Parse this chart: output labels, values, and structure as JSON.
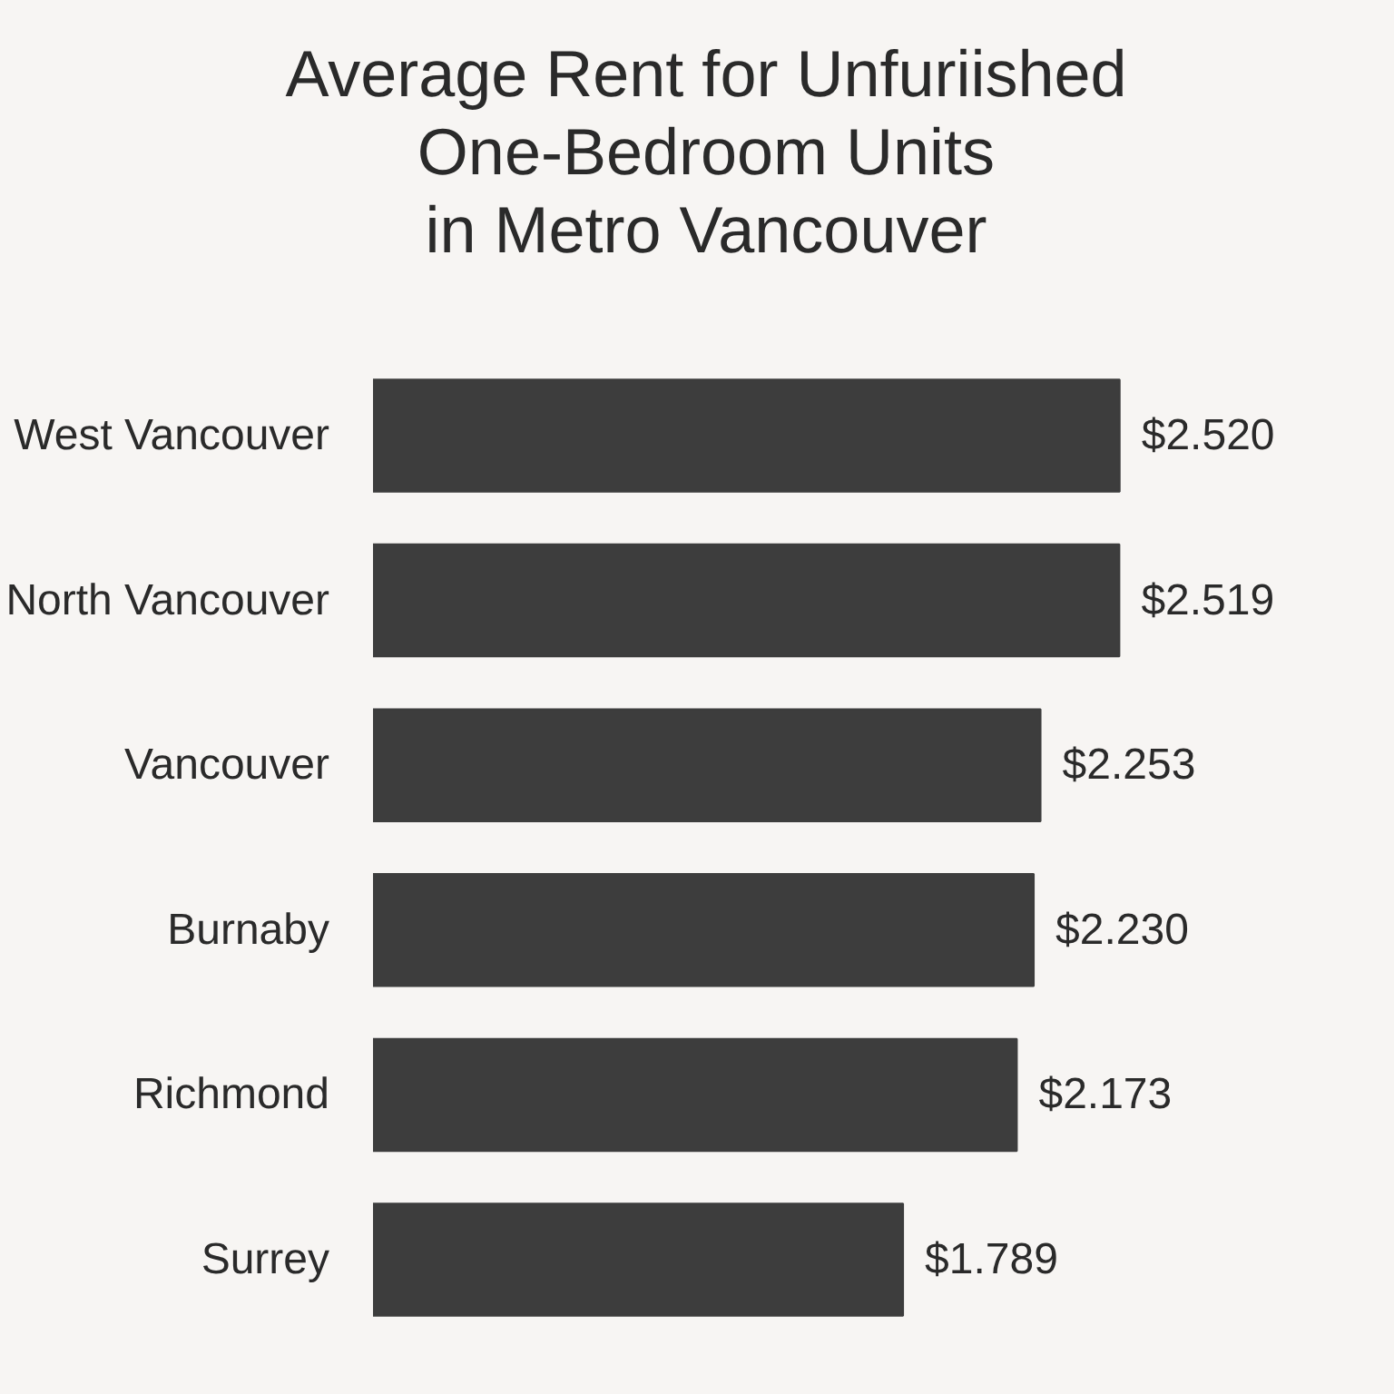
{
  "chart_data": {
    "type": "bar",
    "orientation": "horizontal",
    "title": "Average Rent for Unfuriished\nOne-Bedroom Units\nin Metro Vancouver",
    "categories": [
      "West Vancouver",
      "North Vancouver",
      "Vancouver",
      "Burnaby",
      "Richmond",
      "Surrey"
    ],
    "values": [
      2520,
      2519,
      2253,
      2230,
      2173,
      1789
    ],
    "value_labels": [
      "$2.520",
      "$2.519",
      "$2.253",
      "$2.230",
      "$2.173",
      "$1.789"
    ],
    "color": "#3d3d3d",
    "grid": false,
    "tick_labels": "y"
  }
}
